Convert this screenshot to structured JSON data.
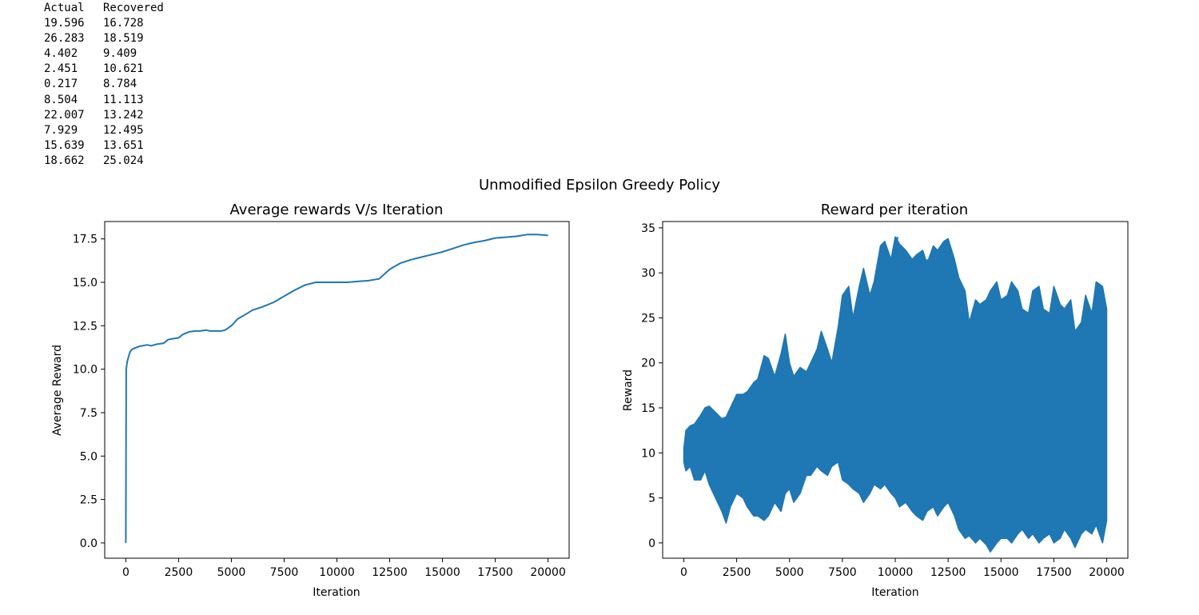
{
  "output_table": {
    "headers": [
      "Actual",
      "Recovered"
    ],
    "rows": [
      [
        "19.596",
        "16.728"
      ],
      [
        "26.283",
        "18.519"
      ],
      [
        "4.402",
        "9.409"
      ],
      [
        "2.451",
        "10.621"
      ],
      [
        "0.217",
        "8.784"
      ],
      [
        "8.504",
        "11.113"
      ],
      [
        "22.007",
        "13.242"
      ],
      [
        "7.929",
        "12.495"
      ],
      [
        "15.639",
        "13.651"
      ],
      [
        "18.662",
        "25.024"
      ]
    ]
  },
  "figure": {
    "suptitle": "Unmodified Epsilon Greedy Policy",
    "line_color": "#1f77b4"
  },
  "chart_data": [
    {
      "type": "line",
      "title": "Average rewards V/s Iteration",
      "xlabel": "Iteration",
      "ylabel": "Average Reward",
      "xlim": [
        -1000,
        21000
      ],
      "ylim": [
        -0.88,
        18.5
      ],
      "xticks": [
        0,
        2500,
        5000,
        7500,
        10000,
        12500,
        15000,
        17500,
        20000
      ],
      "yticks": [
        0.0,
        2.5,
        5.0,
        7.5,
        10.0,
        12.5,
        15.0,
        17.5
      ],
      "ytick_labels": [
        "0.0",
        "2.5",
        "5.0",
        "7.5",
        "10.0",
        "12.5",
        "15.0",
        "17.5"
      ],
      "series": [
        {
          "x": [
            0,
            20,
            60,
            100,
            200,
            300,
            400,
            600,
            800,
            1000,
            1200,
            1500,
            1800,
            2000,
            2200,
            2500,
            2700,
            3000,
            3300,
            3500,
            3800,
            4000,
            4200,
            4500,
            4700,
            5000,
            5300,
            5600,
            6000,
            6500,
            7000,
            7500,
            8000,
            8500,
            9000,
            9500,
            10000,
            10500,
            11000,
            11500,
            12000,
            12500,
            13000,
            13500,
            14000,
            14500,
            15000,
            15500,
            16000,
            16500,
            17000,
            17500,
            18000,
            18500,
            19000,
            19500,
            20000
          ],
          "y": [
            0.0,
            10.0,
            10.4,
            10.6,
            11.0,
            11.15,
            11.2,
            11.3,
            11.35,
            11.4,
            11.35,
            11.45,
            11.5,
            11.7,
            11.75,
            11.8,
            12.0,
            12.15,
            12.2,
            12.2,
            12.25,
            12.2,
            12.2,
            12.2,
            12.25,
            12.5,
            12.9,
            13.1,
            13.4,
            13.6,
            13.85,
            14.2,
            14.55,
            14.85,
            15.0,
            15.0,
            15.0,
            15.0,
            15.05,
            15.1,
            15.2,
            15.75,
            16.1,
            16.3,
            16.45,
            16.6,
            16.75,
            16.95,
            17.15,
            17.3,
            17.4,
            17.55,
            17.6,
            17.65,
            17.75,
            17.75,
            17.7
          ]
        }
      ]
    },
    {
      "type": "line",
      "title": "Reward per iteration",
      "xlabel": "Iteration",
      "ylabel": "Reward",
      "xlim": [
        -1000,
        21000
      ],
      "ylim": [
        -1.7,
        35.7
      ],
      "xticks": [
        0,
        2500,
        5000,
        7500,
        10000,
        12500,
        15000,
        17500,
        20000
      ],
      "yticks": [
        0,
        5,
        10,
        15,
        20,
        25,
        30,
        35
      ],
      "ytick_labels": [
        "0",
        "5",
        "10",
        "15",
        "20",
        "25",
        "30",
        "35"
      ],
      "series": [
        {
          "x": [
            0,
            100,
            300,
            500,
            800,
            1000,
            1200,
            1500,
            1800,
            2000,
            2200,
            2500,
            2800,
            3000,
            3300,
            3500,
            3800,
            4000,
            4300,
            4600,
            4800,
            5000,
            5200,
            5500,
            5800,
            6000,
            6300,
            6500,
            6800,
            7000,
            7300,
            7500,
            7800,
            8000,
            8300,
            8500,
            8800,
            9000,
            9300,
            9500,
            9800,
            10000,
            10200,
            10500,
            10800,
            11000,
            11300,
            11500,
            11800,
            12000,
            12300,
            12500,
            12800,
            13000,
            13300,
            13500,
            13800,
            14000,
            14300,
            14500,
            14800,
            15000,
            15300,
            15500,
            15800,
            16000,
            16300,
            16500,
            16800,
            17000,
            17300,
            17500,
            17800,
            18000,
            18300,
            18500,
            18800,
            19000,
            19300,
            19500,
            19800,
            20000
          ],
          "upper": [
            10.5,
            12.5,
            13.0,
            13.2,
            14.2,
            15.0,
            15.2,
            14.5,
            13.8,
            14.0,
            15.0,
            16.5,
            16.5,
            16.8,
            17.8,
            18.2,
            20.8,
            20.5,
            18.5,
            21.0,
            23.2,
            20.0,
            18.5,
            19.5,
            19.0,
            20.0,
            21.5,
            23.5,
            21.5,
            20.0,
            24.0,
            27.5,
            28.5,
            25.0,
            28.5,
            30.5,
            27.5,
            29.0,
            33.0,
            33.5,
            31.5,
            34.0,
            33.2,
            32.5,
            31.5,
            32.0,
            32.5,
            31.0,
            33.0,
            32.5,
            33.5,
            33.8,
            31.5,
            29.5,
            28.0,
            24.5,
            27.0,
            26.5,
            27.0,
            28.0,
            29.0,
            27.0,
            27.5,
            29.0,
            28.0,
            26.0,
            25.5,
            28.0,
            28.5,
            26.0,
            25.5,
            28.5,
            26.5,
            26.0,
            27.0,
            23.5,
            24.5,
            27.5,
            25.5,
            29.0,
            28.5,
            26.0
          ],
          "lower": [
            9.0,
            8.0,
            8.5,
            7.0,
            7.0,
            8.0,
            6.5,
            5.0,
            3.5,
            2.2,
            4.0,
            5.5,
            5.0,
            4.0,
            3.0,
            3.0,
            2.5,
            3.0,
            4.5,
            3.5,
            5.5,
            6.0,
            4.5,
            5.5,
            7.5,
            7.5,
            8.5,
            8.0,
            7.5,
            8.5,
            9.0,
            7.0,
            6.5,
            6.0,
            5.5,
            4.5,
            5.5,
            6.5,
            6.0,
            6.5,
            5.5,
            5.0,
            4.0,
            4.5,
            3.5,
            3.0,
            2.5,
            3.5,
            4.0,
            3.0,
            4.0,
            4.5,
            3.0,
            1.5,
            0.5,
            0.8,
            0.0,
            0.5,
            -0.2,
            -1.0,
            0.0,
            0.5,
            0.5,
            0.0,
            1.0,
            1.5,
            0.5,
            1.0,
            0.0,
            0.5,
            1.0,
            0.0,
            0.5,
            1.5,
            0.5,
            -0.5,
            1.0,
            1.5,
            1.0,
            2.0,
            0.0,
            2.5
          ]
        }
      ],
      "spikes": [
        {
          "x": 9500,
          "lo": 24.0,
          "hi": 32.5
        },
        {
          "x": 10100,
          "lo": 22.0,
          "hi": 34.0
        },
        {
          "x": 11200,
          "lo": 22.0,
          "hi": 31.0
        },
        {
          "x": 11500,
          "lo": 23.0,
          "hi": 31.5
        }
      ]
    }
  ]
}
